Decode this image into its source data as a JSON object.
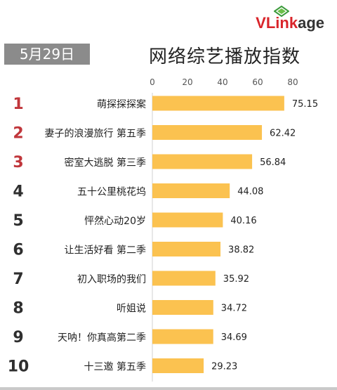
{
  "header": {
    "date": "5月29日",
    "title": "网络综艺播放指数"
  },
  "logo": {
    "v": "V",
    "link": "Link",
    "age": "age"
  },
  "colors": {
    "bar": "#fbc250",
    "rank_top": "#c0363b",
    "rank_rest": "#2f2f2f"
  },
  "chart_data": {
    "type": "bar",
    "orientation": "horizontal",
    "title": "网络综艺播放指数",
    "x_ticks": [
      "0",
      "20",
      "40",
      "60",
      "80"
    ],
    "xlim": [
      0,
      80
    ],
    "ranks": [
      "1",
      "2",
      "3",
      "4",
      "5",
      "6",
      "7",
      "8",
      "9",
      "10"
    ],
    "categories": [
      "萌探探探案",
      "妻子的浪漫旅行 第五季",
      "密室大逃脱 第三季",
      "五十公里桃花坞",
      "怦然心动20岁",
      "让生活好看 第二季",
      "初入职场的我们",
      "听姐说",
      "天呐！你真高第二季",
      "十三邀 第五季"
    ],
    "values": [
      75.15,
      62.42,
      56.84,
      44.08,
      40.16,
      38.82,
      35.92,
      34.72,
      34.69,
      29.23
    ],
    "value_labels": [
      "75.15",
      "62.42",
      "56.84",
      "44.08",
      "40.16",
      "38.82",
      "35.92",
      "34.72",
      "34.69",
      "29.23"
    ]
  }
}
